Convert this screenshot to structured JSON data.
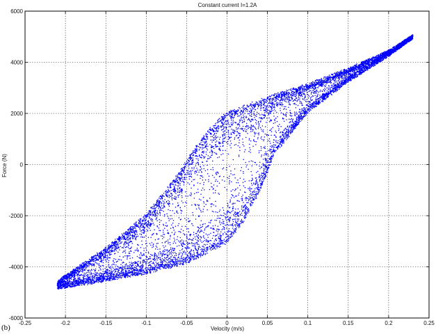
{
  "panel_label": "(b)",
  "chart_data": {
    "type": "scatter",
    "title": "Constant current I=1.2A",
    "xlabel": "Velocity (m/s)",
    "ylabel": "Force (N)",
    "xlim": [
      -0.25,
      0.25
    ],
    "ylim": [
      -6000,
      6000
    ],
    "xticks": [
      -0.25,
      -0.2,
      -0.15,
      -0.1,
      -0.05,
      0,
      0.05,
      0.1,
      0.15,
      0.2,
      0.25
    ],
    "xtick_labels": [
      "-0.25",
      "-0.2",
      "-0.15",
      "-0.1",
      "-0.05",
      "0",
      "0.05",
      "0.1",
      "0.15",
      "0.2",
      "0.25"
    ],
    "yticks": [
      -6000,
      -4000,
      -2000,
      0,
      2000,
      4000,
      6000
    ],
    "ytick_labels": [
      "-6000",
      "-4000",
      "-2000",
      "0",
      "2000",
      "4000",
      "6000"
    ],
    "grid": true,
    "marker_color": "#0000ff",
    "series": [
      {
        "description": "hysteresis point cloud",
        "upper_branch": {
          "x": [
            -0.21,
            -0.15,
            -0.1,
            -0.06,
            -0.04,
            -0.02,
            0.0,
            0.05,
            0.1,
            0.15,
            0.2,
            0.23
          ],
          "y": [
            -4600,
            -3300,
            -2000,
            -400,
            600,
            1400,
            2000,
            2600,
            3100,
            3700,
            4400,
            5000
          ]
        },
        "lower_branch": {
          "x": [
            -0.21,
            -0.15,
            -0.1,
            -0.05,
            0.0,
            0.02,
            0.04,
            0.06,
            0.1,
            0.15,
            0.2,
            0.23
          ],
          "y": [
            -4800,
            -4500,
            -4200,
            -3800,
            -3000,
            -2200,
            -1000,
            500,
            2100,
            3300,
            4300,
            5000
          ]
        }
      }
    ]
  }
}
